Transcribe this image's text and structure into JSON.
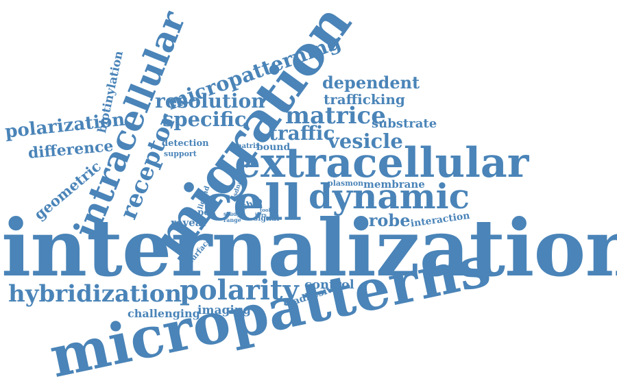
{
  "palette": {
    "word_color": "#4a84b8",
    "background": "#ffffff"
  },
  "words": [
    {
      "text": "internalization"
    },
    {
      "text": "micropatterns"
    },
    {
      "text": "migration"
    },
    {
      "text": "extracellular"
    },
    {
      "text": "cell"
    },
    {
      "text": "dynamic"
    },
    {
      "text": "intracellular"
    },
    {
      "text": "micropatterning"
    },
    {
      "text": "polarity"
    },
    {
      "text": "hybridization"
    },
    {
      "text": "receptor"
    },
    {
      "text": "resolution"
    },
    {
      "text": "specific"
    },
    {
      "text": "matrice"
    },
    {
      "text": "dependent"
    },
    {
      "text": "traffic"
    },
    {
      "text": "vesicle"
    },
    {
      "text": "polarization"
    },
    {
      "text": "difference"
    },
    {
      "text": "geometric"
    },
    {
      "text": "trafficking"
    },
    {
      "text": "substrate"
    },
    {
      "text": "biotinylation"
    },
    {
      "text": "probe"
    },
    {
      "text": "membrane"
    },
    {
      "text": "plasmon"
    },
    {
      "text": "reveal"
    },
    {
      "text": "shape"
    },
    {
      "text": "detection"
    },
    {
      "text": "support"
    },
    {
      "text": "matrix"
    },
    {
      "text": "bound"
    },
    {
      "text": "interaction"
    },
    {
      "text": "control"
    },
    {
      "text": "adhesive"
    },
    {
      "text": "challenging"
    },
    {
      "text": "imaging"
    },
    {
      "text": "surface"
    },
    {
      "text": "ligand"
    },
    {
      "text": "ssdna"
    },
    {
      "text": "ship"
    },
    {
      "text": "tool"
    },
    {
      "text": "bcrs"
    },
    {
      "text": "study"
    },
    {
      "text": "range"
    },
    {
      "text": "signal"
    }
  ]
}
